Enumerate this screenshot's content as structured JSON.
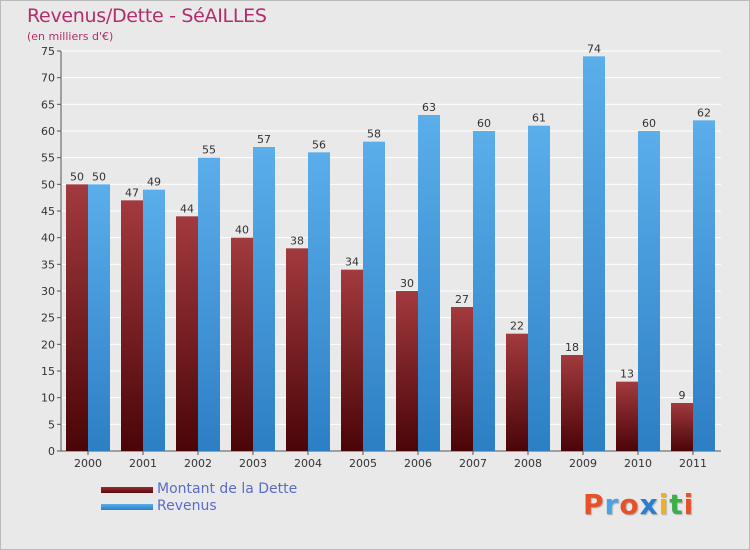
{
  "chart_data": {
    "type": "bar",
    "title": "Revenus/Dette - SéAILLES",
    "subtitle": "(en milliers d'€)",
    "categories": [
      "2000",
      "2001",
      "2002",
      "2003",
      "2004",
      "2005",
      "2006",
      "2007",
      "2008",
      "2009",
      "2010",
      "2011"
    ],
    "series": [
      {
        "name": "Montant de la Dette",
        "color": "#7a1e22",
        "values": [
          50,
          47,
          44,
          40,
          38,
          34,
          30,
          27,
          22,
          18,
          13,
          9
        ]
      },
      {
        "name": "Revenus",
        "color": "#4aa3e6",
        "values": [
          50,
          49,
          55,
          57,
          56,
          58,
          63,
          60,
          61,
          74,
          60,
          62
        ]
      }
    ],
    "ylim": [
      0,
      75
    ],
    "yticks": [
      0,
      5,
      10,
      15,
      20,
      25,
      30,
      35,
      40,
      45,
      50,
      55,
      60,
      65,
      70,
      75
    ],
    "grid": true,
    "legend_position": "bottom-left",
    "xlabel": "",
    "ylabel": ""
  },
  "logo": {
    "letters": [
      "P",
      "r",
      "o",
      "x",
      "i",
      "t",
      "i"
    ],
    "colors": [
      "#e8502a",
      "#4aa3e6",
      "#e8502a",
      "#2a7fd0",
      "#f0b020",
      "#3cae4a",
      "#e8502a"
    ]
  }
}
